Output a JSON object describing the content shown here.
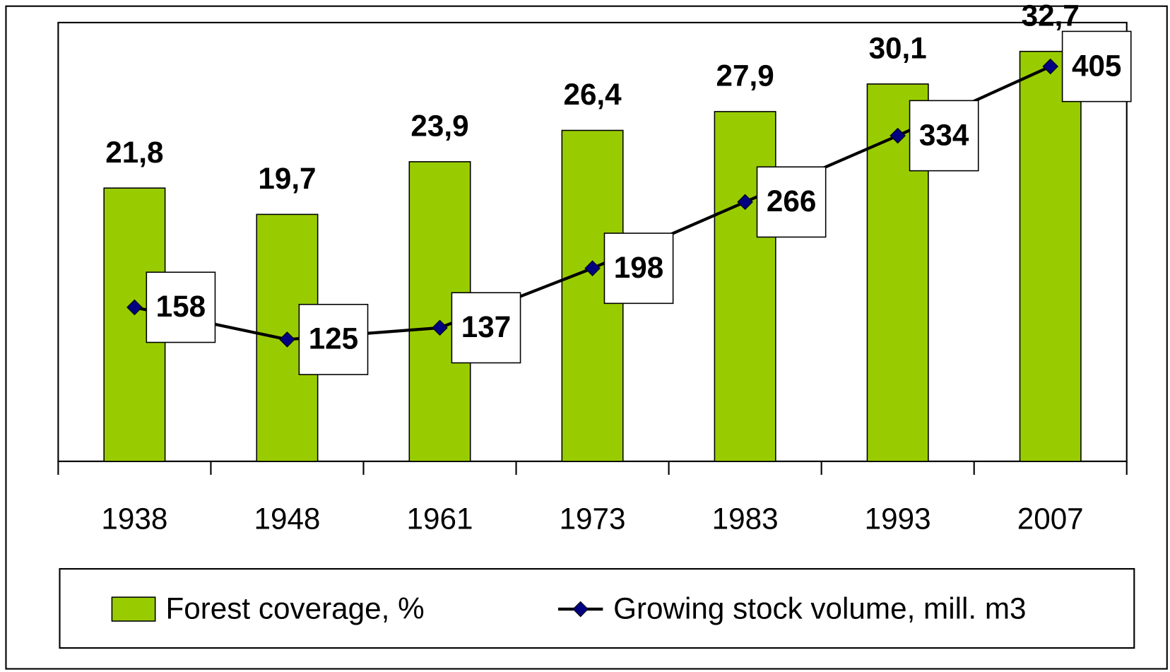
{
  "chart_data": {
    "type": "bar",
    "categories": [
      "1938",
      "1948",
      "1961",
      "1973",
      "1983",
      "1993",
      "2007"
    ],
    "series": [
      {
        "name": "Forest coverage, %",
        "type": "bar",
        "color": "#99cc00",
        "values": [
          21.8,
          19.7,
          23.9,
          26.4,
          27.9,
          30.1,
          32.7
        ],
        "value_labels": [
          "21,8",
          "19,7",
          "23,9",
          "26,4",
          "27,9",
          "30,1",
          "32,7"
        ]
      },
      {
        "name": "Growing stock volume, mill. m3",
        "type": "line",
        "axis": "y2",
        "color": "#000000",
        "marker_color": "#000080",
        "values": [
          158,
          125,
          137,
          198,
          266,
          334,
          405
        ]
      }
    ],
    "ylim": [
      0,
      35
    ],
    "y2lim": [
      0,
      450
    ],
    "legend": "bottom"
  }
}
